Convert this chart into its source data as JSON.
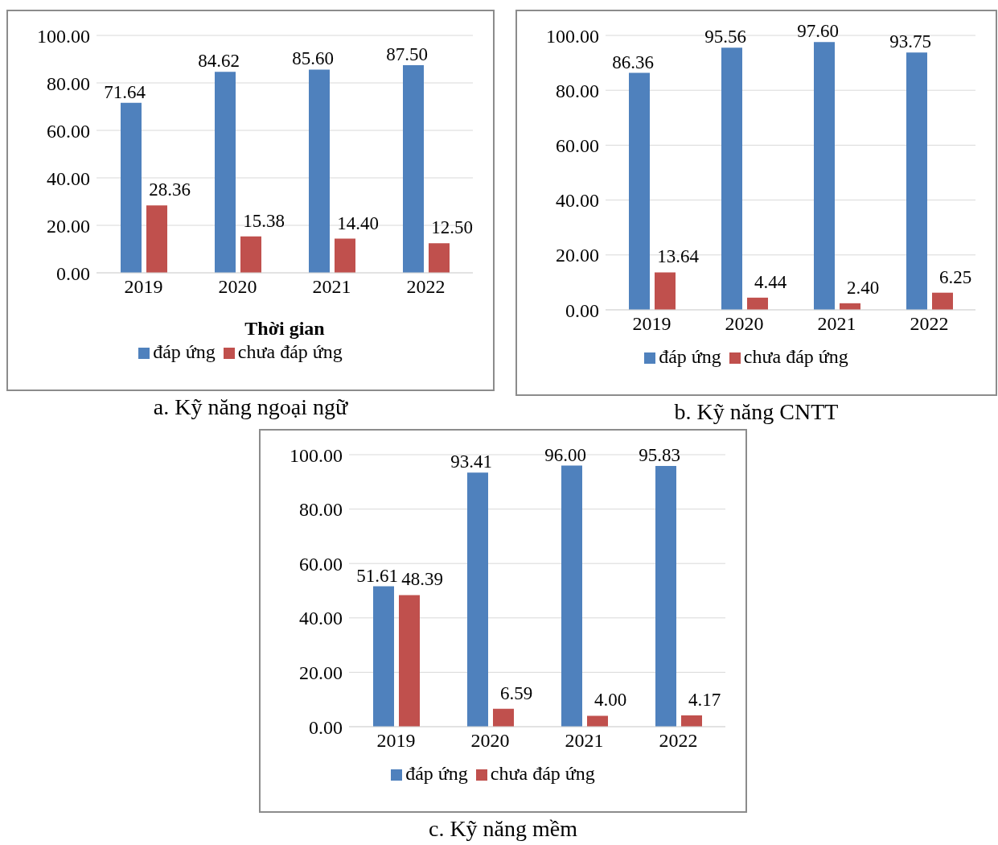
{
  "chart_data": [
    {
      "type": "bar",
      "title": "a. Kỹ năng ngoại ngữ",
      "xlabel": "Thời gian",
      "categories": [
        "2019",
        "2020",
        "2021",
        "2022"
      ],
      "series": [
        {
          "name": "đáp ứng",
          "color": "#4f81bd",
          "values": [
            71.64,
            84.62,
            85.6,
            87.5
          ],
          "value_labels": [
            "71.64",
            "84.62",
            "85.60",
            "87.50"
          ]
        },
        {
          "name": "chưa đáp ứng",
          "color": "#c0504d",
          "values": [
            28.36,
            15.38,
            14.4,
            12.5
          ],
          "value_labels": [
            "28.36",
            "15.38",
            "14.40",
            "12.50"
          ]
        }
      ],
      "ylim": [
        0,
        100
      ],
      "yticks": [
        {
          "value": 0,
          "label": "0.00"
        },
        {
          "value": 20,
          "label": "20.00"
        },
        {
          "value": 40,
          "label": "40.00"
        },
        {
          "value": 60,
          "label": "60.00"
        },
        {
          "value": 80,
          "label": "80.00"
        },
        {
          "value": 100,
          "label": "100.00"
        }
      ],
      "grid": "y",
      "legend": "bottom"
    },
    {
      "type": "bar",
      "title": "b. Kỹ năng CNTT",
      "categories": [
        "2019",
        "2020",
        "2021",
        "2022"
      ],
      "series": [
        {
          "name": "đáp ứng",
          "color": "#4f81bd",
          "values": [
            86.36,
            95.56,
            97.6,
            93.75
          ],
          "value_labels": [
            "86.36",
            "95.56",
            "97.60",
            "93.75"
          ]
        },
        {
          "name": "chưa đáp ứng",
          "color": "#c0504d",
          "values": [
            13.64,
            4.44,
            2.4,
            6.25
          ],
          "value_labels": [
            "13.64",
            "4.44",
            "2.40",
            "6.25"
          ]
        }
      ],
      "ylim": [
        0,
        100
      ],
      "yticks": [
        {
          "value": 0,
          "label": "0.00"
        },
        {
          "value": 20,
          "label": "20.00"
        },
        {
          "value": 40,
          "label": "40.00"
        },
        {
          "value": 60,
          "label": "60.00"
        },
        {
          "value": 80,
          "label": "80.00"
        },
        {
          "value": 100,
          "label": "100.00"
        }
      ],
      "grid": "y",
      "legend": "bottom"
    },
    {
      "type": "bar",
      "title": "c. Kỹ năng mềm",
      "categories": [
        "2019",
        "2020",
        "2021",
        "2022"
      ],
      "series": [
        {
          "name": "đáp ứng",
          "color": "#4f81bd",
          "values": [
            51.61,
            93.41,
            96.0,
            95.83
          ],
          "value_labels": [
            "51.61",
            "93.41",
            "96.00",
            "95.83"
          ]
        },
        {
          "name": "chưa đáp ứng",
          "color": "#c0504d",
          "values": [
            48.39,
            6.59,
            4.0,
            4.17
          ],
          "value_labels": [
            "48.39",
            "6.59",
            "4.00",
            "4.17"
          ]
        }
      ],
      "ylim": [
        0,
        100
      ],
      "yticks": [
        {
          "value": 0,
          "label": "0.00"
        },
        {
          "value": 20,
          "label": "20.00"
        },
        {
          "value": 40,
          "label": "40.00"
        },
        {
          "value": 60,
          "label": "60.00"
        },
        {
          "value": 80,
          "label": "80.00"
        },
        {
          "value": 100,
          "label": "100.00"
        }
      ],
      "grid": "y",
      "legend": "bottom"
    }
  ]
}
